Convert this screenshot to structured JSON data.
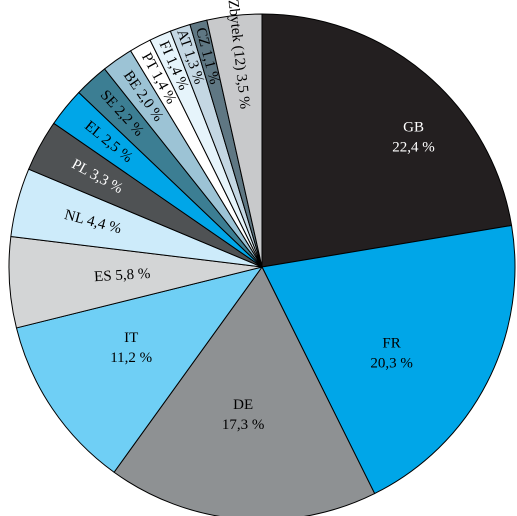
{
  "chart_data": {
    "type": "pie",
    "slices": [
      {
        "code": "GB",
        "pct": "22,4 %",
        "value": 22.4,
        "color": "#231f20",
        "text_color": "#ffffff",
        "style": "center"
      },
      {
        "code": "FR",
        "pct": "20,3 %",
        "value": 20.3,
        "color": "#00a6e8",
        "text_color": "#000000",
        "style": "center"
      },
      {
        "code": "DE",
        "pct": "17,3 %",
        "value": 17.3,
        "color": "#8e9193",
        "text_color": "#000000",
        "style": "center"
      },
      {
        "code": "IT",
        "pct": "11,2 %",
        "value": 11.2,
        "color": "#6fcff5",
        "text_color": "#000000",
        "style": "center"
      },
      {
        "code": "ES",
        "pct": "5,8 %",
        "value": 5.8,
        "color": "#d3d5d6",
        "text_color": "#000000",
        "style": "inline"
      },
      {
        "code": "NL",
        "pct": "4,4 %",
        "value": 4.4,
        "color": "#cdebfa",
        "text_color": "#000000",
        "style": "inline"
      },
      {
        "code": "PL",
        "pct": "3,3 %",
        "value": 3.3,
        "color": "#4f5254",
        "text_color": "#ffffff",
        "style": "inline"
      },
      {
        "code": "EL",
        "pct": "2,5 %",
        "value": 2.5,
        "color": "#00a6e8",
        "text_color": "#000000",
        "style": "inline"
      },
      {
        "code": "SE",
        "pct": "2,2 %",
        "value": 2.2,
        "color": "#3c7e93",
        "text_color": "#000000",
        "style": "inline"
      },
      {
        "code": "BE",
        "pct": "2,0 %",
        "value": 2.0,
        "color": "#9cc3d5",
        "text_color": "#000000",
        "style": "inline"
      },
      {
        "code": "PT",
        "pct": "1,4 %",
        "value": 1.4,
        "color": "#ffffff",
        "text_color": "#000000",
        "style": "inline"
      },
      {
        "code": "FI",
        "pct": "1,4 %",
        "value": 1.4,
        "color": "#e6f4fb",
        "text_color": "#000000",
        "style": "inline"
      },
      {
        "code": "AT",
        "pct": "1,3 %",
        "value": 1.3,
        "color": "#c4d7e3",
        "text_color": "#000000",
        "style": "inline"
      },
      {
        "code": "CZ",
        "pct": "1,1 %",
        "value": 1.1,
        "color": "#5f7783",
        "text_color": "#000000",
        "style": "inline"
      },
      {
        "code": "Zbytek (12)",
        "pct": "3,5 %",
        "value": 3.5,
        "color": "#c8c9cb",
        "text_color": "#000000",
        "style": "inline"
      }
    ]
  }
}
